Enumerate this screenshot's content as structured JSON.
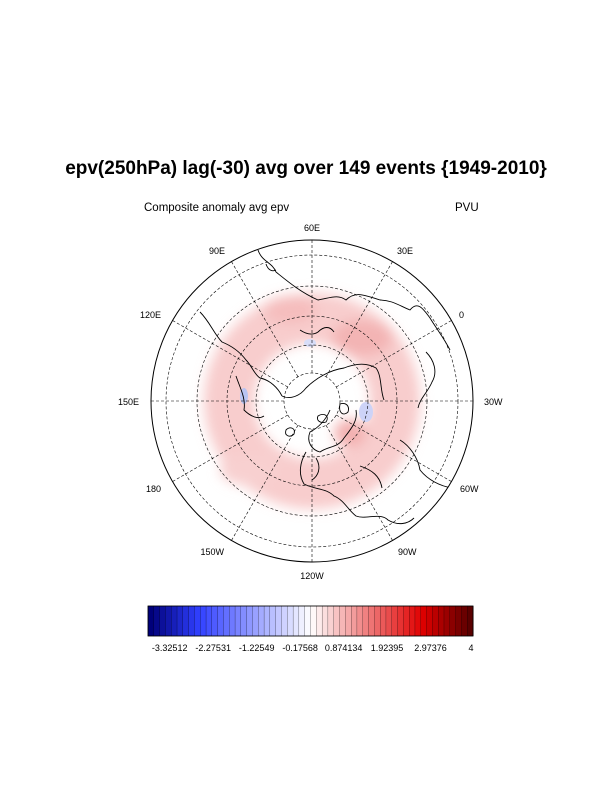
{
  "title": "epv(250hPa) lag(-30) avg over 149 events {1949-2010}",
  "subtitle_left": "Composite anomaly avg epv",
  "subtitle_right": "PVU",
  "longitude_labels": [
    "60E",
    "30E",
    "0",
    "30W",
    "60W",
    "90W",
    "120W",
    "150W",
    "180",
    "150E",
    "120E",
    "90E"
  ],
  "colorbar": {
    "labels": [
      "-3.32512",
      "-2.27531",
      "-1.22549",
      "-0.17568",
      "0.874134",
      "1.92395",
      "2.97376",
      "4"
    ],
    "min": -3.85,
    "max": 4.0,
    "n_boxes": 56,
    "colors": {
      "low": "#00007a",
      "mid_low": "#3040ff",
      "white": "#ffffff",
      "mid_high": "#e00000",
      "high": "#5a0000"
    }
  },
  "projection": "north-polar-stereographic",
  "field_colors": {
    "positive": "#f7c8c8",
    "negative": "#c7cff5",
    "coast": "#000000",
    "grid": "#000000"
  }
}
